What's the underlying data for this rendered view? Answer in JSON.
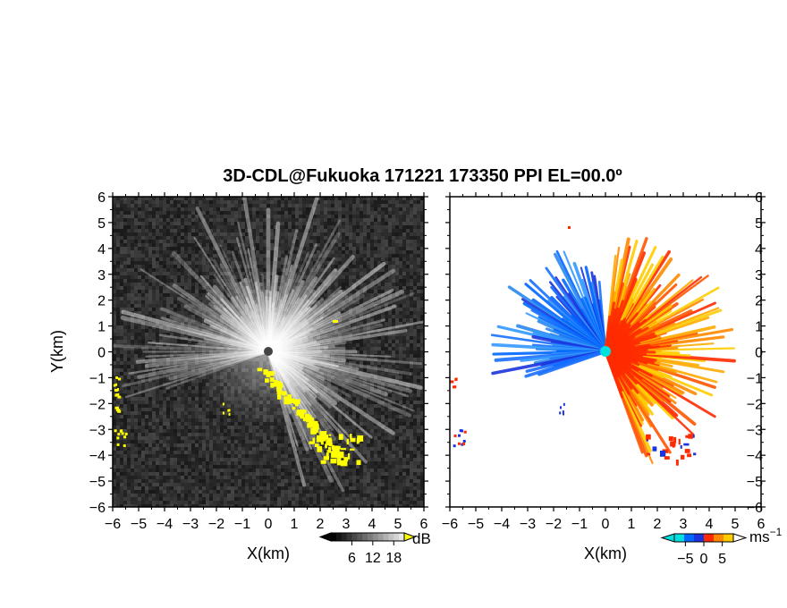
{
  "title": "3D-CDL@Fukuoka 171221 173350 PPI EL=00.0º",
  "chart_data": [
    {
      "type": "heatmap",
      "panel": "left",
      "quantity": "SNR",
      "xlabel": "X(km)",
      "ylabel": "Y(km)",
      "xlim": [
        -6,
        6
      ],
      "ylim": [
        -6,
        6
      ],
      "xticks": [
        "−6",
        "−5",
        "−4",
        "−3",
        "−2",
        "−1",
        "0",
        "1",
        "2",
        "3",
        "4",
        "5",
        "6"
      ],
      "yticks": [
        "6",
        "5",
        "4",
        "3",
        "2",
        "1",
        "0",
        "−1",
        "−2",
        "−3",
        "−4",
        "−5",
        "−6"
      ],
      "colorbar": {
        "unit": "dB",
        "ticks": [
          6,
          12,
          18
        ],
        "tick_labels": [
          "6",
          "12",
          "18"
        ],
        "range": [
          0,
          21
        ],
        "low_color": "#000000",
        "high_color": "#ffffff",
        "mask_color": "#ffff00"
      }
    },
    {
      "type": "heatmap",
      "panel": "right",
      "quantity": "radial velocity",
      "xlabel": "X(km)",
      "xlim": [
        -6,
        6
      ],
      "ylim": [
        -6,
        6
      ],
      "xticks": [
        "−6",
        "−5",
        "−4",
        "−3",
        "−2",
        "−1",
        "0",
        "1",
        "2",
        "3",
        "4",
        "5",
        "6"
      ],
      "yticks": [
        "6",
        "5",
        "4",
        "3",
        "2",
        "1",
        "0",
        "−1",
        "−2",
        "−3",
        "−4",
        "−5",
        "−6"
      ],
      "colorbar": {
        "unit": "ms",
        "unit_exponent": "−1",
        "ticks": [
          -5,
          0,
          5
        ],
        "tick_labels": [
          "−5",
          "0",
          "5"
        ],
        "range": [
          -8,
          8
        ],
        "colors": [
          "#00e0e0",
          "#0066ff",
          "#1a33dd",
          "#ff2a00",
          "#ff8800",
          "#ffcc00"
        ]
      }
    }
  ]
}
